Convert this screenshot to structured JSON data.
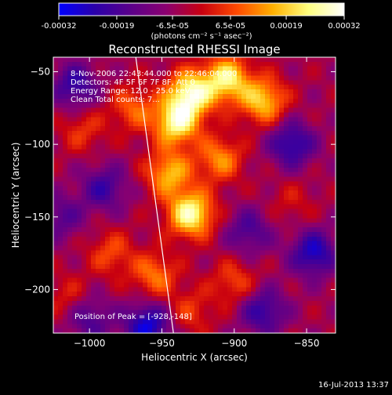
{
  "colorbar": {
    "ticks": [
      "-0.00032",
      "-0.00019",
      "-6.5e-05",
      "6.5e-05",
      "0.00019",
      "0.00032"
    ],
    "tick_values": [
      -0.00032,
      -0.00019,
      -6.5e-05,
      6.5e-05,
      0.00019,
      0.00032
    ],
    "range": [
      -0.00032,
      0.00032
    ],
    "units": "(photons cm⁻² s⁻¹ asec⁻²)",
    "colormap": [
      "#0000ff",
      "#2a00aa",
      "#5a008a",
      "#8a0070",
      "#c80010",
      "#ff4a00",
      "#ffb000",
      "#ffff80",
      "#ffffff"
    ]
  },
  "chart_data": {
    "type": "heatmap",
    "title": "Reconstructed RHESSI Image",
    "xlabel": "Heliocentric X (arcsec)",
    "ylabel": "Heliocentric Y (arcsec)",
    "xlim": [
      -1025,
      -830
    ],
    "ylim": [
      -230,
      -40
    ],
    "x_ticks": [
      -1000,
      -950,
      -900,
      -850
    ],
    "x_tick_labels": [
      "−1000",
      "−950",
      "−900",
      "−850"
    ],
    "y_ticks": [
      -50,
      -100,
      -150,
      -200
    ],
    "y_tick_labels": [
      "−50",
      "−100",
      "−150",
      "−200"
    ],
    "annotations": [
      "8-Nov-2006 22:43:44.000 to 22:46:04.000",
      "Detectors: 4F 5F 6F 7F 8F, Att 0",
      "Energy Range: 12.0 - 25.0 keV",
      "Clean     Total counts: 7..."
    ],
    "peak_label": "Position of Peak = [-928,-148]",
    "peak": [
      -928,
      -148
    ],
    "limb_line": [
      [
        -968,
        -40
      ],
      [
        -942,
        -230
      ]
    ],
    "sources": [
      {
        "x": -930,
        "y": -65,
        "value": 0.00032
      },
      {
        "x": -940,
        "y": -85,
        "value": 0.0003
      },
      {
        "x": -905,
        "y": -55,
        "value": 0.00028
      },
      {
        "x": -880,
        "y": -70,
        "value": 0.00024
      },
      {
        "x": -930,
        "y": -148,
        "value": 0.00032
      },
      {
        "x": -945,
        "y": -120,
        "value": 0.00022
      },
      {
        "x": -910,
        "y": -110,
        "value": 0.00018
      },
      {
        "x": -955,
        "y": -190,
        "value": 0.00016
      },
      {
        "x": -985,
        "y": -175,
        "value": 0.00012
      },
      {
        "x": -1005,
        "y": -90,
        "value": 0.0001
      },
      {
        "x": -970,
        "y": -75,
        "value": 0.00014
      },
      {
        "x": -900,
        "y": -195,
        "value": 0.00012
      },
      {
        "x": -1015,
        "y": -205,
        "value": 8e-05
      },
      {
        "x": -860,
        "y": -140,
        "value": 6e-05
      },
      {
        "x": -930,
        "y": -215,
        "value": 0.0001
      },
      {
        "x": -990,
        "y": -130,
        "value": -0.00016
      },
      {
        "x": -1010,
        "y": -60,
        "value": -0.00018
      },
      {
        "x": -860,
        "y": -100,
        "value": -0.0002
      },
      {
        "x": -845,
        "y": -175,
        "value": -0.00022
      },
      {
        "x": -880,
        "y": -215,
        "value": -0.00018
      },
      {
        "x": -1000,
        "y": -220,
        "value": -0.00014
      },
      {
        "x": -960,
        "y": -225,
        "value": -0.00024
      },
      {
        "x": -1020,
        "y": -150,
        "value": -0.00012
      },
      {
        "x": -890,
        "y": -160,
        "value": -0.00014
      }
    ]
  },
  "footer": {
    "timestamp": "16-Jul-2013 13:37"
  }
}
